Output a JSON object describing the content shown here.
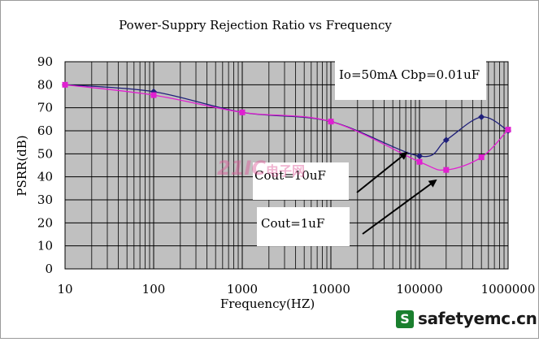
{
  "chart_data": {
    "type": "line",
    "title": "Power-Suppry Rejection Ratio vs Frequency",
    "xlabel": "Frequency(HZ)",
    "ylabel": "PSRR(dB)",
    "x_scale": "log",
    "xlim": [
      10,
      1000000
    ],
    "ylim": [
      0,
      90
    ],
    "x_ticks": [
      "10",
      "100",
      "1000",
      "10000",
      "100000",
      "1000000"
    ],
    "y_ticks": [
      "0",
      "10",
      "20",
      "30",
      "40",
      "50",
      "60",
      "70",
      "80",
      "90"
    ],
    "grid": true,
    "series": [
      {
        "name": "Cout=10uF",
        "color": "#1f1f7a",
        "marker": "diamond",
        "x": [
          10,
          100,
          1000,
          10000,
          100000,
          200000,
          500000,
          1000000
        ],
        "y": [
          80,
          77,
          68,
          64,
          49,
          56,
          66,
          60
        ]
      },
      {
        "name": "Cout=1uF",
        "color": "#e020d0",
        "marker": "square",
        "x": [
          10,
          100,
          1000,
          10000,
          100000,
          200000,
          500000,
          1000000
        ],
        "y": [
          80,
          75.5,
          68,
          64,
          46.5,
          43,
          48.5,
          60.5
        ]
      }
    ],
    "annotations": [
      "Io=50mA Cbp=0.01uF",
      "Cout=10uF",
      "Cout=1uF"
    ]
  },
  "watermark": {
    "brand": "safetyemc.cn",
    "badge": "S",
    "overlay_num": "21IC",
    "overlay_cn": "电子网"
  }
}
